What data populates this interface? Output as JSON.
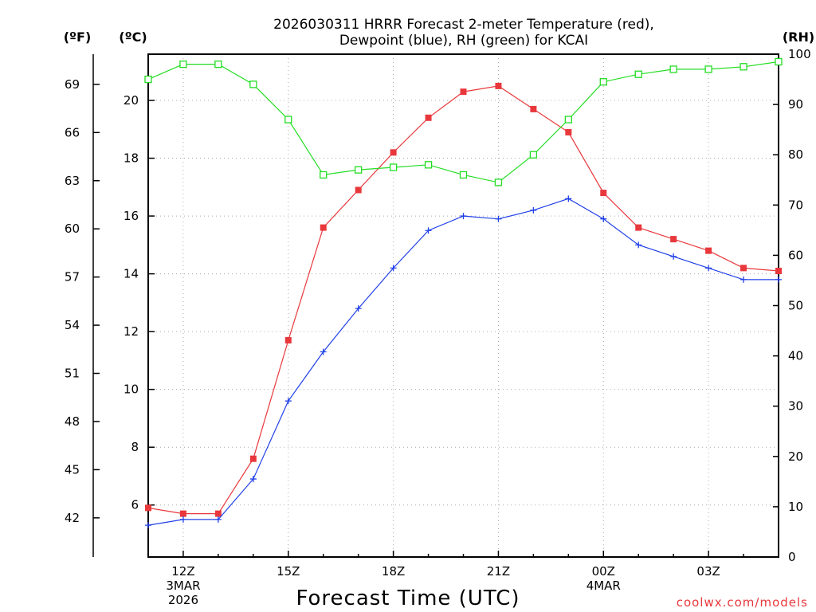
{
  "chart_data": {
    "type": "line",
    "title": [
      "2026030311 HRRR Forecast 2-meter Temperature (red),",
      "Dewpoint (blue), RH (green) for KCAI"
    ],
    "xlabel": "Forecast Time (UTC)",
    "credit": "coolwx.com/models",
    "units": {
      "fahrenheit": "(ºF)",
      "celsius": "(ºC)",
      "rh": "(RH)"
    },
    "x_hours": [
      11,
      12,
      13,
      14,
      15,
      16,
      17,
      18,
      19,
      20,
      21,
      22,
      23,
      24,
      25,
      26,
      27,
      28,
      29
    ],
    "x_ticks": [
      {
        "hour": 12,
        "lines": [
          "12Z",
          "3MAR",
          "2026"
        ]
      },
      {
        "hour": 15,
        "lines": [
          "15Z"
        ]
      },
      {
        "hour": 18,
        "lines": [
          "18Z"
        ]
      },
      {
        "hour": 21,
        "lines": [
          "21Z"
        ]
      },
      {
        "hour": 24,
        "lines": [
          "00Z",
          "4MAR"
        ]
      },
      {
        "hour": 27,
        "lines": [
          "03Z"
        ]
      }
    ],
    "xlim": [
      11,
      29
    ],
    "ylim_celsius": [
      4.2,
      21.6
    ],
    "ylim_rh": [
      0,
      100
    ],
    "celsius_ticks": [
      6,
      8,
      10,
      12,
      14,
      16,
      18,
      20
    ],
    "fahrenheit_ticks": [
      42,
      45,
      48,
      51,
      54,
      57,
      60,
      63,
      66,
      69
    ],
    "rh_ticks": [
      0,
      10,
      20,
      30,
      40,
      50,
      60,
      70,
      80,
      90,
      100
    ],
    "grid": true,
    "series": [
      {
        "name": "Temperature",
        "color": "#e8383c",
        "marker": "filled-square",
        "values": [
          5.9,
          5.7,
          5.7,
          7.6,
          11.7,
          15.6,
          16.9,
          18.2,
          19.4,
          20.3,
          20.5,
          19.7,
          18.9,
          16.8,
          15.6,
          15.2,
          14.8,
          14.2,
          14.1
        ]
      },
      {
        "name": "Dewpoint",
        "color": "#2040e8",
        "marker": "plus",
        "values": [
          5.3,
          5.5,
          5.5,
          6.9,
          9.6,
          11.3,
          12.8,
          14.2,
          15.5,
          16.0,
          15.9,
          16.2,
          16.6,
          15.9,
          15.0,
          14.6,
          14.2,
          13.8,
          13.8
        ]
      },
      {
        "name": "RH",
        "color": "#22dd22",
        "marker": "open-square",
        "axis": "rh",
        "values": [
          95,
          98,
          98,
          94,
          87,
          76,
          77,
          77.5,
          78,
          76,
          74.5,
          80,
          87,
          94.5,
          96,
          97,
          97,
          97.5,
          98.5
        ]
      }
    ]
  }
}
